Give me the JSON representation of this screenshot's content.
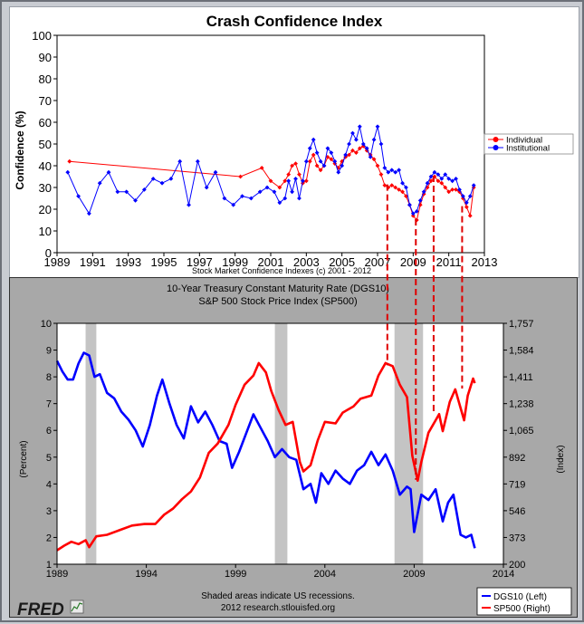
{
  "chart_data": [
    {
      "type": "line",
      "title": "Crash Confidence Index",
      "xlabel": "Stock Market Confidence Indexes (c) 2001 - 2012",
      "ylabel": "Confidence (%)",
      "ylim": [
        0,
        100
      ],
      "yticks": [
        0,
        10,
        20,
        30,
        40,
        50,
        60,
        70,
        80,
        90,
        100
      ],
      "xlim": [
        1989,
        2013
      ],
      "xticks": [
        1989,
        1991,
        1993,
        1995,
        1997,
        1999,
        2001,
        2003,
        2005,
        2007,
        2009,
        2011,
        2013
      ],
      "grid": false,
      "legend_position": "right",
      "series": [
        {
          "name": "Individual",
          "color": "#ff0000",
          "marker": "diamond",
          "x": [
            1989.7,
            1999.3,
            2000.5,
            2001.0,
            2001.5,
            2001.8,
            2002.0,
            2002.2,
            2002.4,
            2002.6,
            2002.8,
            2003.0,
            2003.2,
            2003.4,
            2003.6,
            2003.8,
            2004.0,
            2004.2,
            2004.4,
            2004.6,
            2004.8,
            2005.0,
            2005.2,
            2005.4,
            2005.6,
            2005.8,
            2006.0,
            2006.2,
            2006.4,
            2006.6,
            2006.8,
            2007.0,
            2007.2,
            2007.4,
            2007.6,
            2007.8,
            2008.0,
            2008.2,
            2008.4,
            2008.6,
            2008.8,
            2009.0,
            2009.2,
            2009.4,
            2009.6,
            2009.8,
            2010.0,
            2010.2,
            2010.4,
            2010.6,
            2010.8,
            2011.0,
            2011.2,
            2011.4,
            2011.6,
            2011.8,
            2012.0,
            2012.2,
            2012.4
          ],
          "values": [
            42,
            35,
            39,
            33,
            30,
            33,
            36,
            40,
            41,
            36,
            32,
            33,
            42,
            45,
            40,
            38,
            40,
            44,
            43,
            41,
            39,
            42,
            44,
            45,
            47,
            46,
            48,
            49,
            47,
            45,
            43,
            40,
            36,
            31,
            30,
            31,
            30,
            29,
            28,
            26,
            22,
            17,
            15,
            22,
            27,
            30,
            33,
            35,
            33,
            32,
            30,
            28,
            29,
            29,
            28,
            25,
            21,
            17,
            30
          ]
        },
        {
          "name": "Institutional",
          "color": "#0000ff",
          "marker": "diamond",
          "x": [
            1989.6,
            1990.2,
            1990.8,
            1991.4,
            1991.9,
            1992.4,
            1992.9,
            1993.4,
            1993.9,
            1994.4,
            1994.9,
            1995.4,
            1995.9,
            1996.4,
            1996.9,
            1997.4,
            1997.9,
            1998.4,
            1998.9,
            1999.4,
            1999.9,
            2000.4,
            2000.8,
            2001.2,
            2001.5,
            2001.8,
            2002.0,
            2002.2,
            2002.4,
            2002.6,
            2002.8,
            2003.0,
            2003.2,
            2003.4,
            2003.6,
            2003.8,
            2004.0,
            2004.2,
            2004.4,
            2004.6,
            2004.8,
            2005.0,
            2005.2,
            2005.4,
            2005.6,
            2005.8,
            2006.0,
            2006.2,
            2006.4,
            2006.6,
            2006.8,
            2007.0,
            2007.2,
            2007.4,
            2007.6,
            2007.8,
            2008.0,
            2008.2,
            2008.4,
            2008.6,
            2008.8,
            2009.0,
            2009.2,
            2009.4,
            2009.6,
            2009.8,
            2010.0,
            2010.2,
            2010.4,
            2010.6,
            2010.8,
            2011.0,
            2011.2,
            2011.4,
            2011.6,
            2011.8,
            2012.0,
            2012.2,
            2012.4
          ],
          "values": [
            37,
            26,
            18,
            32,
            37,
            28,
            28,
            24,
            29,
            34,
            32,
            34,
            42,
            22,
            42,
            30,
            37,
            25,
            22,
            26,
            25,
            28,
            30,
            28,
            23,
            25,
            33,
            28,
            34,
            25,
            33,
            42,
            48,
            52,
            46,
            42,
            40,
            48,
            46,
            42,
            37,
            40,
            45,
            50,
            55,
            52,
            58,
            50,
            48,
            44,
            52,
            58,
            50,
            39,
            37,
            38,
            37,
            38,
            32,
            30,
            22,
            18,
            19,
            24,
            28,
            32,
            35,
            37,
            36,
            34,
            36,
            34,
            33,
            34,
            29,
            26,
            23,
            26,
            31
          ]
        }
      ]
    },
    {
      "type": "line",
      "title": "10-Year Treasury Constant Maturity Rate (DGS10)",
      "subtitle": "S&P 500 Stock Price Index (SP500)",
      "ylabel": "(Percent)",
      "y2label": "(Index)",
      "ylim": [
        1,
        10
      ],
      "yticks": [
        1,
        2,
        3,
        4,
        5,
        6,
        7,
        8,
        9,
        10
      ],
      "y2lim": [
        200,
        1757
      ],
      "y2ticks": [
        200,
        373,
        546,
        719,
        892,
        1065,
        1238,
        1411,
        1584,
        1757
      ],
      "xlim": [
        1989,
        2014
      ],
      "xticks": [
        1989,
        1994,
        1999,
        2004,
        2009,
        2014
      ],
      "grid": false,
      "recessions": [
        [
          1990.6,
          1991.2
        ],
        [
          2001.2,
          2001.9
        ],
        [
          2007.9,
          2009.5
        ]
      ],
      "legend_position": "bottom-right",
      "series": [
        {
          "name": "DGS10 (Left)",
          "color": "#0000ff",
          "axis": "left",
          "x": [
            1989.0,
            1989.3,
            1989.6,
            1989.9,
            1990.2,
            1990.5,
            1990.8,
            1991.1,
            1991.4,
            1991.8,
            1992.2,
            1992.6,
            1993.0,
            1993.4,
            1993.8,
            1994.2,
            1994.6,
            1994.9,
            1995.3,
            1995.7,
            1996.1,
            1996.5,
            1996.9,
            1997.3,
            1997.7,
            1998.1,
            1998.5,
            1998.8,
            1999.2,
            1999.6,
            2000.0,
            2000.4,
            2000.8,
            2001.2,
            2001.6,
            2002.0,
            2002.4,
            2002.8,
            2003.2,
            2003.5,
            2003.8,
            2004.2,
            2004.6,
            2005.0,
            2005.4,
            2005.8,
            2006.2,
            2006.6,
            2007.0,
            2007.4,
            2007.8,
            2008.2,
            2008.6,
            2008.8,
            2009.0,
            2009.4,
            2009.8,
            2010.2,
            2010.6,
            2010.9,
            2011.2,
            2011.6,
            2011.9,
            2012.2,
            2012.4
          ],
          "values": [
            8.6,
            8.2,
            7.9,
            7.9,
            8.5,
            8.9,
            8.8,
            8.0,
            8.1,
            7.4,
            7.2,
            6.7,
            6.4,
            6.0,
            5.4,
            6.2,
            7.3,
            7.9,
            7.0,
            6.2,
            5.7,
            6.9,
            6.3,
            6.7,
            6.2,
            5.6,
            5.5,
            4.6,
            5.2,
            5.9,
            6.6,
            6.1,
            5.6,
            5.0,
            5.3,
            5.0,
            4.9,
            3.8,
            4.0,
            3.3,
            4.4,
            4.0,
            4.5,
            4.2,
            4.0,
            4.5,
            4.7,
            5.2,
            4.7,
            5.1,
            4.5,
            3.6,
            3.9,
            3.8,
            2.2,
            3.6,
            3.4,
            3.8,
            2.6,
            3.3,
            3.6,
            2.1,
            2.0,
            2.1,
            1.6
          ]
        },
        {
          "name": "SP500 (Right)",
          "color": "#ff0000",
          "axis": "right",
          "x": [
            1989.0,
            1989.4,
            1989.8,
            1990.2,
            1990.6,
            1990.8,
            1991.2,
            1991.8,
            1992.5,
            1993.2,
            1993.9,
            1994.5,
            1995.0,
            1995.5,
            1996.0,
            1996.5,
            1997.0,
            1997.5,
            1998.0,
            1998.6,
            1999.0,
            1999.5,
            2000.0,
            2000.3,
            2000.7,
            2001.0,
            2001.4,
            2001.8,
            2002.2,
            2002.6,
            2002.8,
            2003.2,
            2003.6,
            2004.0,
            2004.6,
            2005.0,
            2005.6,
            2006.0,
            2006.6,
            2007.0,
            2007.4,
            2007.8,
            2008.2,
            2008.6,
            2008.9,
            2009.2,
            2009.4,
            2009.8,
            2010.2,
            2010.4,
            2010.6,
            2011.0,
            2011.3,
            2011.6,
            2011.8,
            2012.0,
            2012.3,
            2012.4
          ],
          "values": [
            290,
            320,
            345,
            330,
            355,
            310,
            380,
            390,
            420,
            450,
            460,
            460,
            520,
            560,
            620,
            670,
            760,
            920,
            980,
            1100,
            1230,
            1360,
            1420,
            1500,
            1440,
            1320,
            1200,
            1100,
            1120,
            860,
            800,
            840,
            1000,
            1120,
            1110,
            1180,
            1220,
            1270,
            1290,
            1420,
            1500,
            1480,
            1360,
            1280,
            900,
            740,
            860,
            1050,
            1130,
            1170,
            1060,
            1250,
            1330,
            1210,
            1130,
            1290,
            1400,
            1370
          ]
        }
      ],
      "footer_lines": [
        "Shaded areas indicate US recessions.",
        "2012 research.stlouisfed.org"
      ],
      "logo_text": "FRED"
    }
  ]
}
